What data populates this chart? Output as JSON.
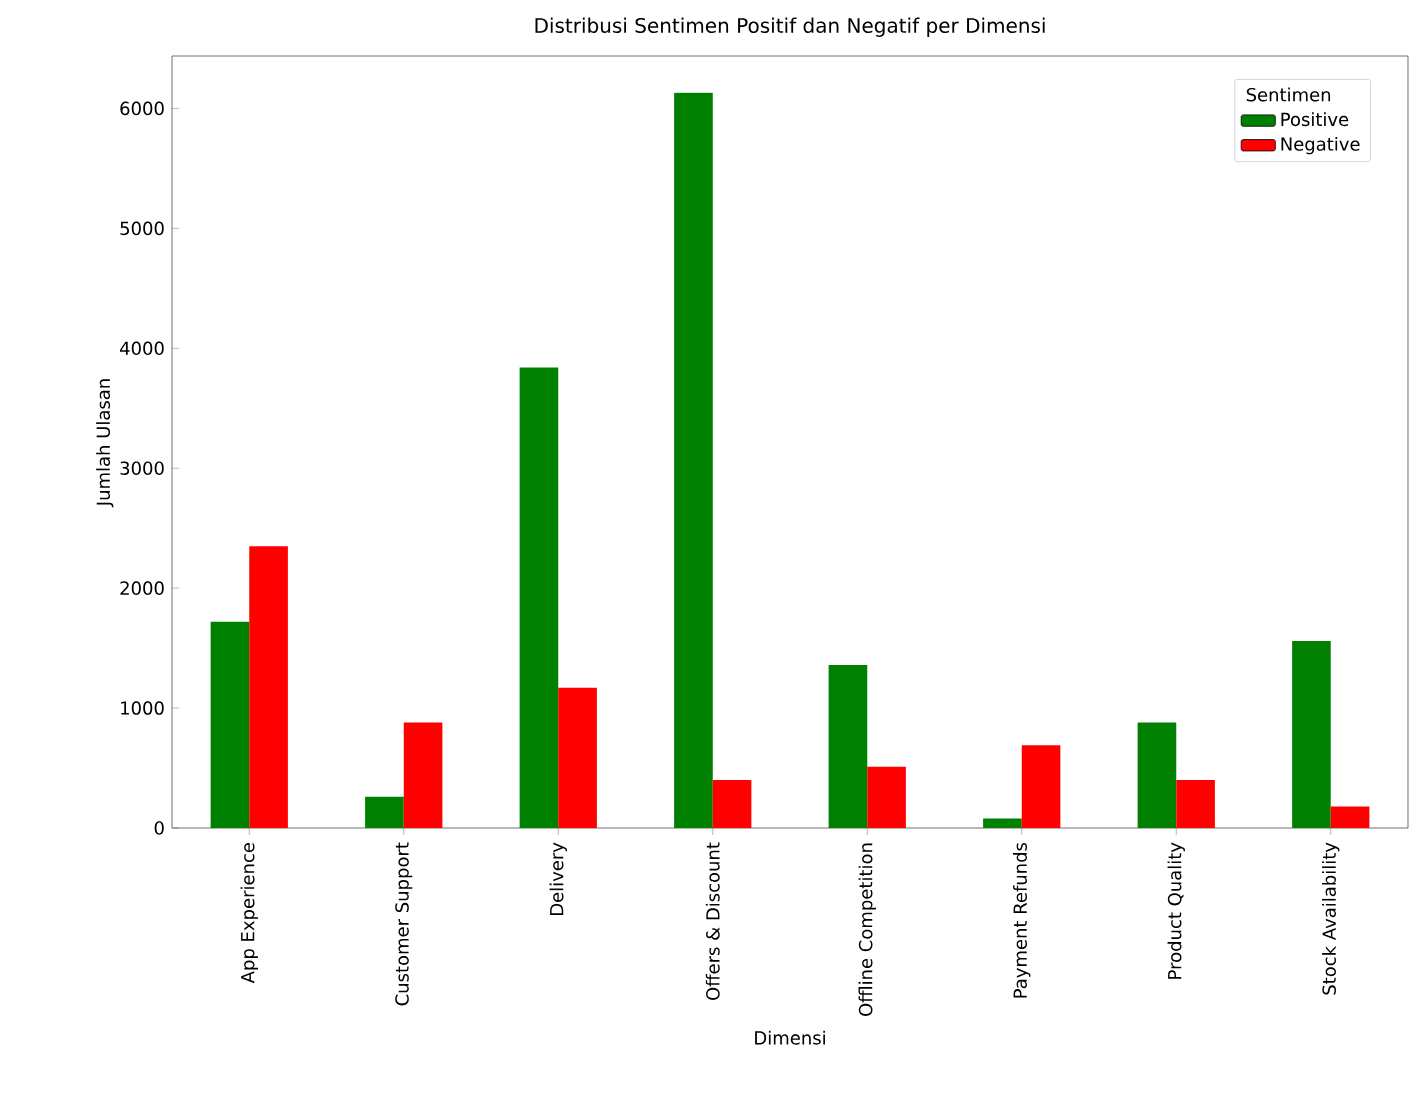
{
  "chart_data": {
    "type": "bar",
    "title": "Distribusi Sentimen Positif dan Negatif per Dimensi",
    "xlabel": "Dimensi",
    "ylabel": "Jumlah Ulasan",
    "legend_title": "Sentimen",
    "legend": "top right",
    "categories": [
      "App Experience",
      "Customer Support",
      "Delivery",
      "Offers & Discount",
      "Offline Competition",
      "Payment Refunds",
      "Product Quality",
      "Stock Availability"
    ],
    "series": [
      {
        "name": "Positive",
        "color": "#008000",
        "values": [
          1720,
          260,
          3840,
          6130,
          1360,
          80,
          880,
          1560
        ]
      },
      {
        "name": "Negative",
        "color": "#ff0000",
        "values": [
          2350,
          880,
          1170,
          400,
          510,
          690,
          400,
          180
        ]
      }
    ],
    "ylim": [
      0,
      6437
    ],
    "yticks": [
      0,
      1000,
      2000,
      3000,
      4000,
      5000,
      6000
    ],
    "grid": false
  }
}
